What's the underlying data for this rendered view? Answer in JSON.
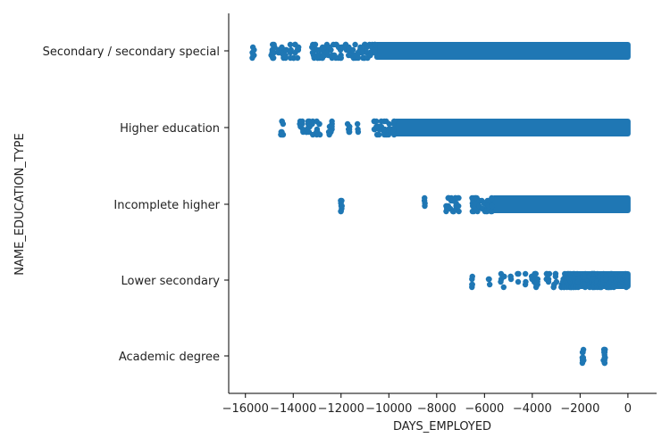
{
  "chart_data": {
    "type": "scatter",
    "subtype": "categorical strip plot",
    "xlabel": "DAYS_EMPLOYED",
    "ylabel": "NAME_EDUCATION_TYPE",
    "xlim": [
      -16700,
      1200
    ],
    "xticks": [
      -16000,
      -14000,
      -12000,
      -10000,
      -8000,
      -6000,
      -4000,
      -2000,
      0
    ],
    "xtick_labels": [
      "−16000",
      "−14000",
      "−12000",
      "−10000",
      "−8000",
      "−6000",
      "−4000",
      "−2000",
      "0"
    ],
    "categories": [
      "Secondary / secondary special",
      "Higher education",
      "Incomplete higher",
      "Lower secondary",
      "Academic degree"
    ],
    "marker_color": "#1f77b4",
    "grid": false,
    "legend": "none",
    "series": [
      {
        "category": "Secondary / secondary special",
        "dense_range": [
          -10500,
          0
        ],
        "x": [
          -15700,
          -15650,
          -14900,
          -14850,
          -14800,
          -14600,
          -14500,
          -14400,
          -14300,
          -14100,
          -14000,
          -13900,
          -13800,
          -13200,
          -13150,
          -13100,
          -13000,
          -12900,
          -12800,
          -12700,
          -12600,
          -12500,
          -12400,
          -12300,
          -12200,
          -12100,
          -12000,
          -11900,
          -11800,
          -11700,
          -11600,
          -11500,
          -11400,
          -11300,
          -11200,
          -11100,
          -11000,
          -10900,
          -10800,
          -10700,
          -10600
        ]
      },
      {
        "category": "Higher education",
        "dense_range": [
          -9700,
          0
        ],
        "x": [
          -14500,
          -14450,
          -13700,
          -13600,
          -13450,
          -13350,
          -13300,
          -13200,
          -13000,
          -12900,
          -12500,
          -12400,
          -11700,
          -11650,
          -11300,
          -10600,
          -10500,
          -10400,
          -10300,
          -10200,
          -10100,
          -10000,
          -9900,
          -9800
        ]
      },
      {
        "category": "Incomplete higher",
        "dense_range": [
          -5600,
          0
        ],
        "x": [
          -12000,
          -11980,
          -8500,
          -7600,
          -7500,
          -7400,
          -7300,
          -7200,
          -7100,
          -6500,
          -6450,
          -6400,
          -6300,
          -6200,
          -6100,
          -6000,
          -5900,
          -5800,
          -5700
        ]
      },
      {
        "category": "Lower secondary",
        "dense_range": [
          -2600,
          0
        ],
        "x": [
          -6500,
          -5800,
          -5300,
          -5200,
          -4900,
          -4600,
          -4300,
          -4000,
          -3900,
          -3850,
          -3800,
          -3400,
          -3300,
          -3100,
          -3000,
          -2800,
          -2700,
          -2650,
          -2600,
          -2550,
          -2500,
          -2450,
          -2400,
          -2350,
          -2300,
          -2250,
          -2200,
          -2100,
          -1900,
          -1800,
          -1600,
          -1500,
          -1450,
          -1400,
          -1300,
          -1200,
          -1100,
          -1000,
          -900,
          -800,
          -700,
          -600,
          -500,
          -400,
          -300,
          -200,
          -100,
          -50
        ]
      },
      {
        "category": "Academic degree",
        "dense_range": null,
        "x": [
          -1900,
          -1880,
          -1000,
          -980,
          -960
        ]
      }
    ]
  }
}
